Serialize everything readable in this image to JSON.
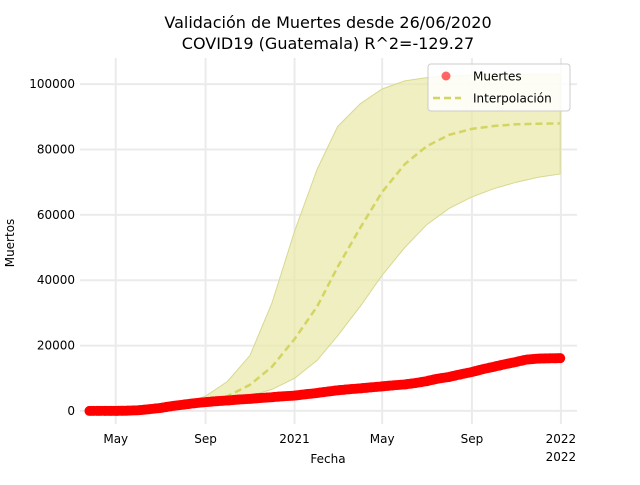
{
  "chart_data": {
    "type": "line",
    "title": "Validación de Muertes desde 26/06/2020",
    "subtitle": "COVID19 (Guatemala) R^2=-129.27",
    "xlabel": "Fecha",
    "ylabel": "Muertos",
    "x_axis_type": "date",
    "xlim": [
      "2020-03-13",
      "2022-01-23"
    ],
    "ylim": [
      -4000,
      108000
    ],
    "x_ticks": [
      {
        "date": "2020-05-01",
        "label": "May",
        "sublabel": ""
      },
      {
        "date": "2020-09-01",
        "label": "Sep",
        "sublabel": ""
      },
      {
        "date": "2021-01-01",
        "label": "2021",
        "sublabel": ""
      },
      {
        "date": "2021-05-01",
        "label": "May",
        "sublabel": ""
      },
      {
        "date": "2021-09-01",
        "label": "Sep",
        "sublabel": ""
      },
      {
        "date": "2022-01-01",
        "label": "2022",
        "sublabel": "2022"
      }
    ],
    "y_ticks": [
      0,
      20000,
      40000,
      60000,
      80000,
      100000
    ],
    "y_tick_labels": [
      "0",
      "20000",
      "40000",
      "60000",
      "80000",
      "100000"
    ],
    "grid": true,
    "legend": {
      "position": "top-right",
      "entries": [
        {
          "label": "Muertes",
          "marker": "circle",
          "color": "#ff0000"
        },
        {
          "label": "Interpolación",
          "marker": "dashed-line",
          "color": "#d4d462"
        }
      ]
    },
    "series": [
      {
        "name": "Muertes",
        "kind": "scatter",
        "color": "#ff0000",
        "points": [
          [
            "2020-03-26",
            0
          ],
          [
            "2020-04-15",
            10
          ],
          [
            "2020-05-01",
            30
          ],
          [
            "2020-05-15",
            60
          ],
          [
            "2020-06-01",
            200
          ],
          [
            "2020-06-15",
            500
          ],
          [
            "2020-07-01",
            900
          ],
          [
            "2020-07-15",
            1400
          ],
          [
            "2020-08-01",
            1900
          ],
          [
            "2020-08-15",
            2300
          ],
          [
            "2020-09-01",
            2700
          ],
          [
            "2020-09-15",
            2950
          ],
          [
            "2020-10-01",
            3200
          ],
          [
            "2020-10-15",
            3450
          ],
          [
            "2020-11-01",
            3700
          ],
          [
            "2020-11-15",
            3950
          ],
          [
            "2020-12-01",
            4200
          ],
          [
            "2020-12-15",
            4450
          ],
          [
            "2021-01-01",
            4700
          ],
          [
            "2021-01-15",
            5050
          ],
          [
            "2021-02-01",
            5500
          ],
          [
            "2021-02-15",
            5900
          ],
          [
            "2021-03-01",
            6300
          ],
          [
            "2021-03-15",
            6600
          ],
          [
            "2021-04-01",
            6900
          ],
          [
            "2021-04-15",
            7200
          ],
          [
            "2021-05-01",
            7500
          ],
          [
            "2021-05-15",
            7800
          ],
          [
            "2021-06-01",
            8100
          ],
          [
            "2021-06-15",
            8500
          ],
          [
            "2021-07-01",
            9100
          ],
          [
            "2021-07-15",
            9800
          ],
          [
            "2021-08-01",
            10400
          ],
          [
            "2021-08-15",
            11100
          ],
          [
            "2021-09-01",
            11900
          ],
          [
            "2021-09-15",
            12700
          ],
          [
            "2021-10-01",
            13500
          ],
          [
            "2021-10-15",
            14200
          ],
          [
            "2021-11-01",
            15000
          ],
          [
            "2021-11-15",
            15700
          ],
          [
            "2021-12-01",
            16000
          ],
          [
            "2021-12-15",
            16100
          ],
          [
            "2021-12-31",
            16150
          ]
        ]
      },
      {
        "name": "Interpolación",
        "kind": "dashed-line",
        "color": "#d4d462",
        "points": [
          [
            "2020-07-01",
            500
          ],
          [
            "2020-08-01",
            1500
          ],
          [
            "2020-09-01",
            2600
          ],
          [
            "2020-10-01",
            4500
          ],
          [
            "2020-11-01",
            8000
          ],
          [
            "2020-12-01",
            13500
          ],
          [
            "2021-01-01",
            22000
          ],
          [
            "2021-02-01",
            32000
          ],
          [
            "2021-03-01",
            44000
          ],
          [
            "2021-04-01",
            56000
          ],
          [
            "2021-05-01",
            67000
          ],
          [
            "2021-06-01",
            75500
          ],
          [
            "2021-07-01",
            81000
          ],
          [
            "2021-08-01",
            84500
          ],
          [
            "2021-09-01",
            86300
          ],
          [
            "2021-10-01",
            87200
          ],
          [
            "2021-11-01",
            87700
          ],
          [
            "2021-12-01",
            87900
          ],
          [
            "2021-12-31",
            88000
          ]
        ],
        "band_lower": [
          [
            "2020-07-01",
            300
          ],
          [
            "2020-08-01",
            1000
          ],
          [
            "2020-09-01",
            1800
          ],
          [
            "2020-10-01",
            3000
          ],
          [
            "2020-11-01",
            4600
          ],
          [
            "2020-12-01",
            6600
          ],
          [
            "2021-01-01",
            10000
          ],
          [
            "2021-02-01",
            15500
          ],
          [
            "2021-03-01",
            23000
          ],
          [
            "2021-04-01",
            32000
          ],
          [
            "2021-05-01",
            41500
          ],
          [
            "2021-06-01",
            50000
          ],
          [
            "2021-07-01",
            57000
          ],
          [
            "2021-08-01",
            62000
          ],
          [
            "2021-09-01",
            65500
          ],
          [
            "2021-10-01",
            68000
          ],
          [
            "2021-11-01",
            70000
          ],
          [
            "2021-12-01",
            71500
          ],
          [
            "2021-12-31",
            72500
          ]
        ],
        "band_upper": [
          [
            "2020-07-01",
            700
          ],
          [
            "2020-08-01",
            2200
          ],
          [
            "2020-09-01",
            4500
          ],
          [
            "2020-10-01",
            9000
          ],
          [
            "2020-11-01",
            17000
          ],
          [
            "2020-12-01",
            33000
          ],
          [
            "2021-01-01",
            55000
          ],
          [
            "2021-02-01",
            74000
          ],
          [
            "2021-03-01",
            87000
          ],
          [
            "2021-04-01",
            94000
          ],
          [
            "2021-05-01",
            98500
          ],
          [
            "2021-06-01",
            101000
          ],
          [
            "2021-07-01",
            102000
          ],
          [
            "2021-08-01",
            102500
          ],
          [
            "2021-09-01",
            102800
          ],
          [
            "2021-10-01",
            103000
          ],
          [
            "2021-11-01",
            103000
          ],
          [
            "2021-12-01",
            103000
          ],
          [
            "2021-12-31",
            103000
          ]
        ]
      }
    ],
    "colors": {
      "band_fill": "#e8e8a8",
      "band_edge": "#d8d890",
      "grid": "#ebebeb"
    }
  }
}
